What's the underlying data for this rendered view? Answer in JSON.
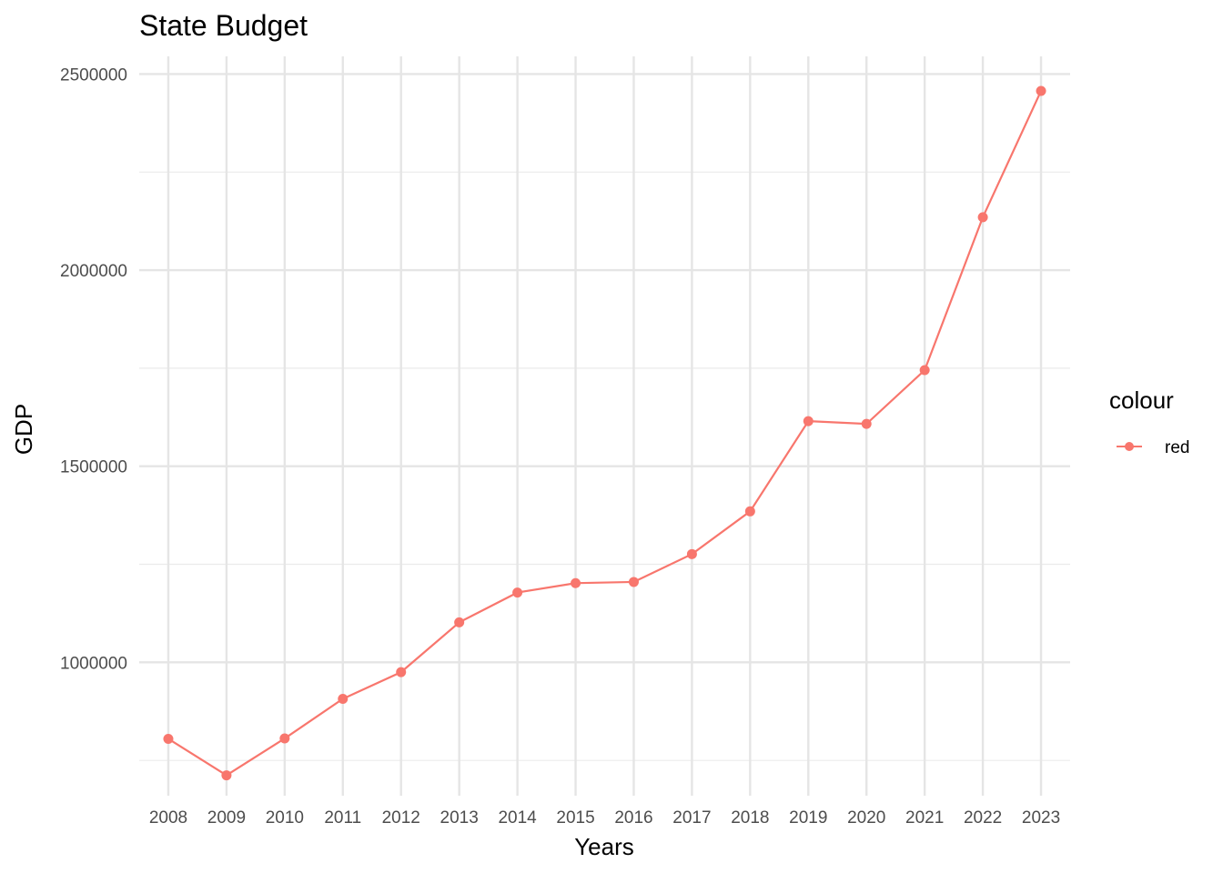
{
  "chart_data": {
    "type": "line",
    "title": "State Budget",
    "xlabel": "Years",
    "ylabel": "GDP",
    "x": [
      2008,
      2009,
      2010,
      2011,
      2012,
      2013,
      2014,
      2015,
      2016,
      2017,
      2018,
      2019,
      2020,
      2021,
      2022,
      2023
    ],
    "x_tick_labels": [
      "2008",
      "2009",
      "2010",
      "2011",
      "2012",
      "2013",
      "2014",
      "2015",
      "2016",
      "2017",
      "2018",
      "2019",
      "2020",
      "2021",
      "2022",
      "2023"
    ],
    "series": [
      {
        "name": "red",
        "color": "#F8766D",
        "values": [
          805000,
          712000,
          806000,
          907000,
          975000,
          1102000,
          1178000,
          1202000,
          1205000,
          1276000,
          1385000,
          1615000,
          1608000,
          1745000,
          2135000,
          2457000
        ]
      }
    ],
    "y_ticks": [
      1000000,
      1500000,
      2000000,
      2500000
    ],
    "y_tick_labels": [
      "1000000",
      "1500000",
      "2000000",
      "2500000"
    ],
    "ylim": [
      660000,
      2545000
    ],
    "xlim": [
      2007.5,
      2023.5
    ],
    "grid": true,
    "legend": {
      "title": "colour",
      "position": "right",
      "entries": [
        "red"
      ]
    }
  }
}
